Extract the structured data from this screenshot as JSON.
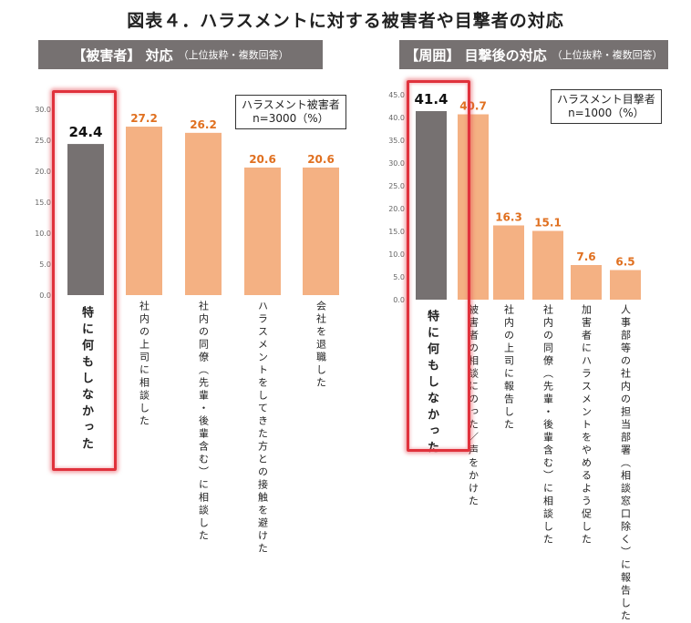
{
  "title": "図表４．ハラスメントに対する被害者や目撃者の対応",
  "colors": {
    "highlight_bar": "#767171",
    "bar": "#f4b183",
    "value_label": "#e07020",
    "highlight_box": "#e0323c",
    "axis_text": "#666666"
  },
  "chart_data": [
    {
      "type": "bar",
      "header": "【被害者】 対応",
      "header_note": "（上位抜粋・複数回答）",
      "legend": [
        "ハラスメント被害者",
        "n=3000（%）"
      ],
      "categories": [
        "特に何もしなかった",
        "社内の上司に相談した",
        "社内の同僚（先輩・後輩含む）に相談した",
        "ハラスメントをしてきた方との接触を避けた",
        "会社を退職した"
      ],
      "values": [
        24.4,
        27.2,
        26.2,
        20.6,
        20.6
      ],
      "value_labels": [
        "24.4",
        "27.2",
        "26.2",
        "20.6",
        "20.6"
      ],
      "highlight_index": 0,
      "ylim": [
        0,
        30
      ],
      "yticks": [
        "0.0",
        "5.0",
        "10.0",
        "15.0",
        "20.0",
        "25.0",
        "30.0"
      ]
    },
    {
      "type": "bar",
      "header": "【周囲】 目撃後の対応",
      "header_note": "（上位抜粋・複数回答）",
      "legend": [
        "ハラスメント目撃者",
        "n=1000（%）"
      ],
      "categories": [
        "特に何もしなかった",
        "被害者の相談にのった／声をかけた",
        "社内の上司に報告した",
        "社内の同僚（先輩・後輩含む）に相談した",
        "加害者にハラスメントをやめるよう促した",
        "人事部等の社内の担当部署（相談窓口除く）に報告した"
      ],
      "values": [
        41.4,
        40.7,
        16.3,
        15.1,
        7.6,
        6.5
      ],
      "value_labels": [
        "41.4",
        "40.7",
        "16.3",
        "15.1",
        "7.6",
        "6.5"
      ],
      "highlight_index": 0,
      "ylim": [
        0,
        45
      ],
      "yticks": [
        "0.0",
        "5.0",
        "10.0",
        "15.0",
        "20.0",
        "25.0",
        "30.0",
        "35.0",
        "40.0",
        "45.0"
      ]
    }
  ]
}
